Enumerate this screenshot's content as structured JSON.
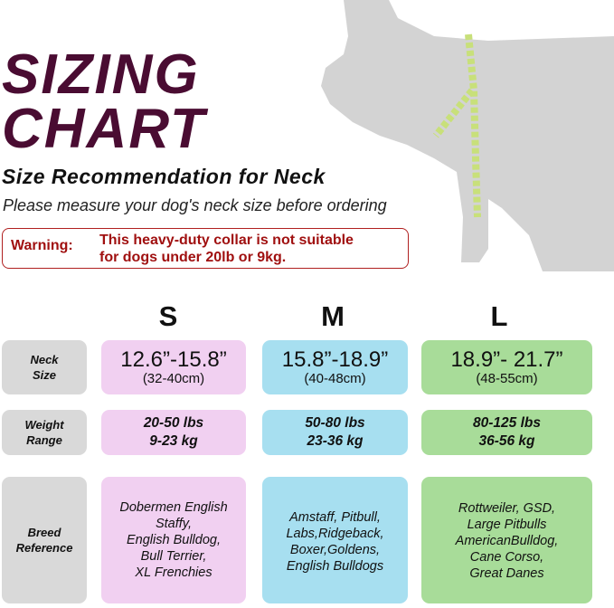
{
  "title_line1": "SIZING",
  "title_line2": "CHART",
  "subtitle": "Size Recommendation for Neck",
  "instruction": "Please measure your dog's neck size before ordering",
  "warning": {
    "label": "Warning:",
    "text_line1": "This heavy-duty collar is not suitable",
    "text_line2": "for dogs under 20lb or 9kg."
  },
  "colors": {
    "title": "#4a0c32",
    "warning": "#a01010",
    "S": "#f1d0f1",
    "M": "#a7dff0",
    "L": "#a8dc99",
    "label_bg": "#d9d9d9"
  },
  "sizes": [
    {
      "name": "S",
      "neck_in": "12.6”-15.8”",
      "neck_cm": "(32-40cm)",
      "weight_lbs": "20-50 lbs",
      "weight_kg": "9-23 kg",
      "breeds": [
        "Dobermen English",
        "Staffy,",
        "English Bulldog,",
        "Bull Terrier,",
        "XL Frenchies"
      ]
    },
    {
      "name": "M",
      "neck_in": "15.8”-18.9”",
      "neck_cm": "(40-48cm)",
      "weight_lbs": "50-80 lbs",
      "weight_kg": "23-36 kg",
      "breeds": [
        "Amstaff, Pitbull,",
        "Labs,Ridgeback,",
        "Boxer,Goldens,",
        "English Bulldogs"
      ]
    },
    {
      "name": "L",
      "neck_in": "18.9”- 21.7”",
      "neck_cm": "(48-55cm)",
      "weight_lbs": "80-125 lbs",
      "weight_kg": "36-56 kg",
      "breeds": [
        "Rottweiler, GSD,",
        "Large Pitbulls",
        "AmericanBulldog,",
        "Cane Corso,",
        "Great Danes"
      ]
    }
  ],
  "row_labels": {
    "neck": [
      "Neck",
      "Size"
    ],
    "weight": [
      "Weight",
      "Range"
    ],
    "breed": [
      "Breed",
      "Reference"
    ]
  }
}
